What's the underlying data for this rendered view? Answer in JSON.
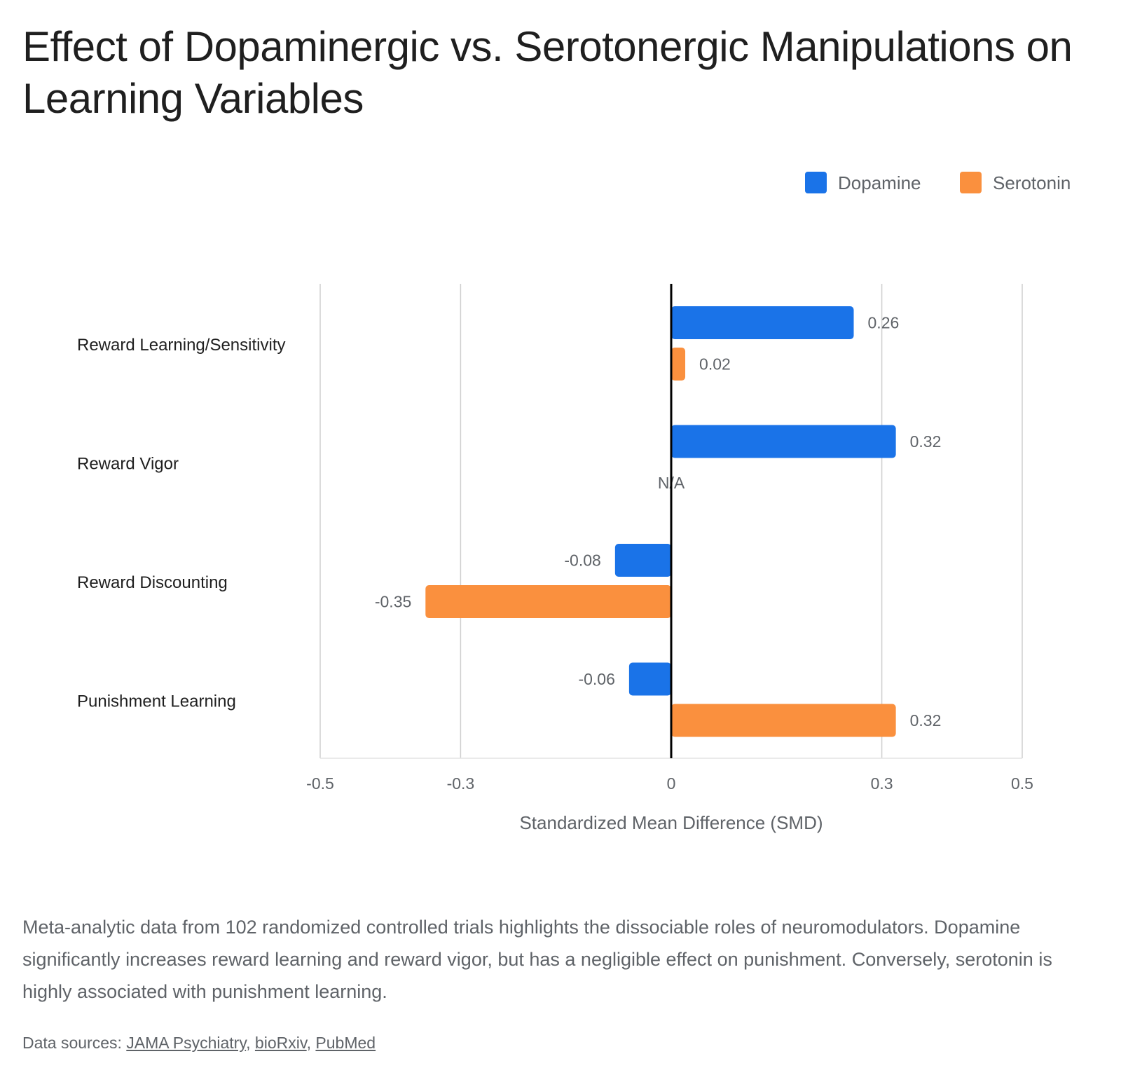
{
  "chart_data": {
    "type": "bar",
    "orientation": "horizontal",
    "title": "Effect of Dopaminergic vs. Serotonergic Manipulations on Learning Variables",
    "xlabel": "Standardized Mean Difference (SMD)",
    "ylabel": "",
    "categories": [
      "Reward Learning/Sensitivity",
      "Reward Vigor",
      "Reward Discounting",
      "Punishment Learning"
    ],
    "series": [
      {
        "name": "Dopamine",
        "color": "#1a73e8",
        "values": [
          0.26,
          0.32,
          -0.08,
          -0.06
        ],
        "labels": [
          "0.26",
          "0.32",
          "-0.08",
          "-0.06"
        ]
      },
      {
        "name": "Serotonin",
        "color": "#fa903e",
        "values": [
          0.02,
          null,
          -0.35,
          0.32
        ],
        "labels": [
          "0.02",
          "N/A",
          "-0.35",
          "0.32"
        ]
      }
    ],
    "xticks": [
      -0.5,
      -0.3,
      0,
      0.3,
      0.5
    ],
    "xtick_labels": [
      "-0.5",
      "-0.3",
      "0",
      "0.3",
      "0.5"
    ],
    "xlim": [
      -0.5,
      0.5
    ],
    "grid": true,
    "legend_position": "top-right"
  },
  "caption": "Meta-analytic data from 102 randomized controlled trials highlights the dissociable roles of neuromodulators. Dopamine significantly increases reward learning and reward vigor, but has a negligible effect on punishment. Conversely, serotonin is highly associated with punishment learning.",
  "sources": {
    "prefix": "Data sources: ",
    "links": [
      "JAMA Psychiatry",
      "bioRxiv",
      "PubMed"
    ]
  }
}
